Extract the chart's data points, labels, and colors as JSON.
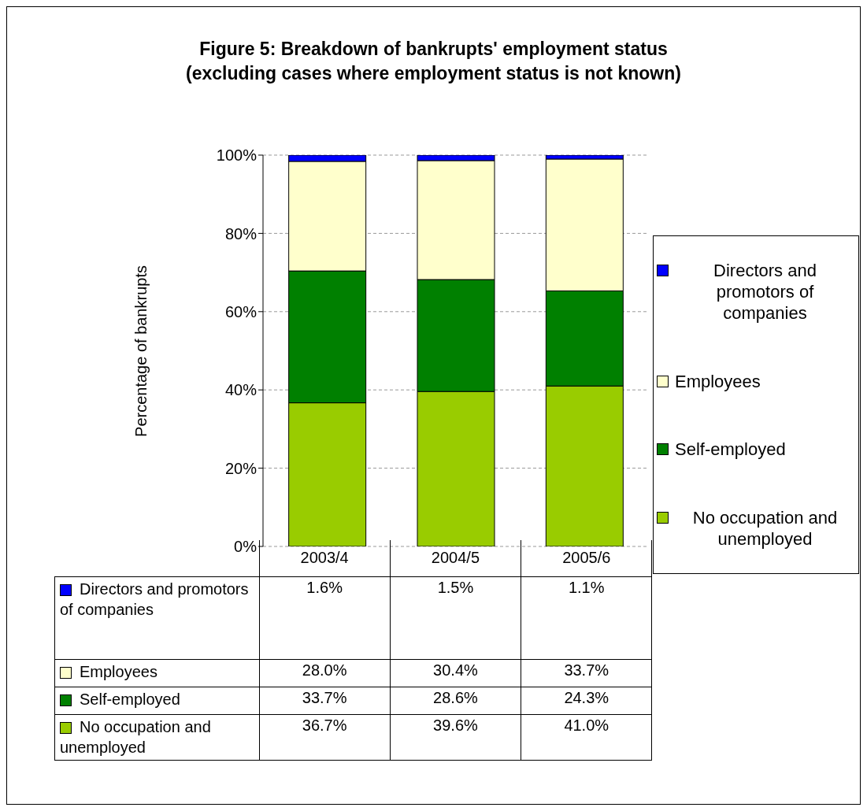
{
  "chart_data": {
    "type": "bar",
    "title": "Figure 5: Breakdown of bankrupts' employment status\n(excluding cases where employment status is not known)",
    "ylabel": "Percentage of bankrupts",
    "categories": [
      "2003/4",
      "2004/5",
      "2005/6"
    ],
    "stacked": true,
    "series": [
      {
        "name": "No occupation and unemployed",
        "color": "#99cc00",
        "values": [
          36.7,
          39.6,
          41.0
        ],
        "value_labels": [
          "36.7%",
          "39.6%",
          "41.0%"
        ]
      },
      {
        "name": "Self-employed",
        "color": "#008000",
        "values": [
          33.7,
          28.6,
          24.3
        ],
        "value_labels": [
          "33.7%",
          "28.6%",
          "24.3%"
        ]
      },
      {
        "name": "Employees",
        "color": "#ffffcc",
        "values": [
          28.0,
          30.4,
          33.7
        ],
        "value_labels": [
          "28.0%",
          "30.4%",
          "33.7%"
        ]
      },
      {
        "name": "Directors and promotors of companies",
        "color": "#0000ff",
        "values": [
          1.6,
          1.5,
          1.1
        ],
        "value_labels": [
          "1.6%",
          "1.5%",
          "1.1%"
        ]
      }
    ],
    "ylim": [
      0,
      100
    ],
    "yticks": [
      {
        "value": 0,
        "label": "0%"
      },
      {
        "value": 20,
        "label": "20%"
      },
      {
        "value": 40,
        "label": "40%"
      },
      {
        "value": 60,
        "label": "60%"
      },
      {
        "value": 80,
        "label": "80%"
      },
      {
        "value": 100,
        "label": "100%"
      }
    ],
    "grid": "y",
    "legend": "right"
  }
}
